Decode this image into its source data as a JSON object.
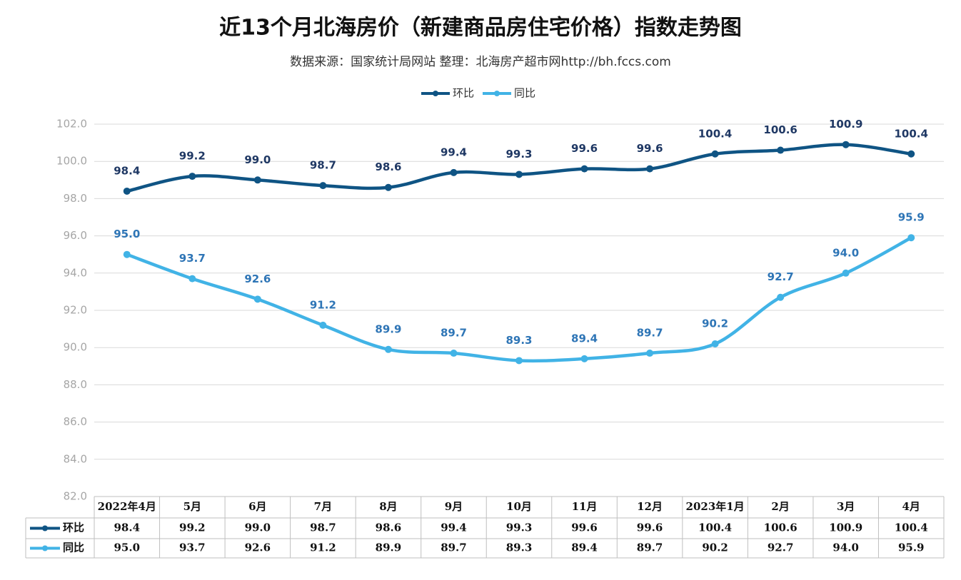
{
  "chart_data": {
    "type": "line",
    "title": "近13个月北海房价（新建商品房住宅价格）指数走势图",
    "subtitle": "数据来源：国家统计局网站   整理：北海房产超市网http://bh.fccs.com",
    "categories": [
      "2022年4月",
      "5月",
      "6月",
      "7月",
      "8月",
      "9月",
      "10月",
      "11月",
      "12月",
      "2023年1月",
      "2月",
      "3月",
      "4月"
    ],
    "series": [
      {
        "name": "环比",
        "color": "#0f5484",
        "label_color": "#1f3864",
        "values": [
          98.4,
          99.2,
          99.0,
          98.7,
          98.6,
          99.4,
          99.3,
          99.6,
          99.6,
          100.4,
          100.6,
          100.9,
          100.4
        ],
        "value_labels": [
          "98.4",
          "99.2",
          "99.0",
          "98.7",
          "98.6",
          "99.4",
          "99.3",
          "99.6",
          "99.6",
          "100.4",
          "100.6",
          "100.9",
          "100.4"
        ]
      },
      {
        "name": "同比",
        "color": "#41b3e6",
        "label_color": "#2e75b6",
        "values": [
          95.0,
          93.7,
          92.6,
          91.2,
          89.9,
          89.7,
          89.3,
          89.4,
          89.7,
          90.2,
          92.7,
          94.0,
          95.9
        ],
        "value_labels": [
          "95.0",
          "93.7",
          "92.6",
          "91.2",
          "89.9",
          "89.7",
          "89.3",
          "89.4",
          "89.7",
          "90.2",
          "92.7",
          "94.0",
          "95.9"
        ]
      }
    ],
    "ylim": [
      82,
      102
    ],
    "yticks": [
      {
        "value": 82,
        "label": "82.0"
      },
      {
        "value": 84,
        "label": "84.0"
      },
      {
        "value": 86,
        "label": "86.0"
      },
      {
        "value": 88,
        "label": "88.0"
      },
      {
        "value": 90,
        "label": "90.0"
      },
      {
        "value": 92,
        "label": "92.0"
      },
      {
        "value": 94,
        "label": "94.0"
      },
      {
        "value": 96,
        "label": "96.0"
      },
      {
        "value": 98,
        "label": "98.0"
      },
      {
        "value": 100,
        "label": "100.0"
      },
      {
        "value": 102,
        "label": "102.0"
      }
    ],
    "grid": true,
    "legend": "top",
    "data_table": true
  }
}
